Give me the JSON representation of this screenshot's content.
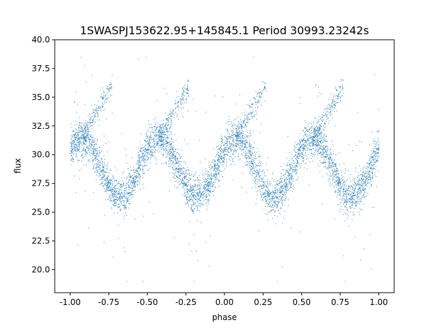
{
  "chart_data": {
    "type": "scatter",
    "title": "1SWASPJ153622.95+145845.1 Period 30993.23242s",
    "xlabel": "phase",
    "ylabel": "flux",
    "xlim": [
      -1.1,
      1.1
    ],
    "ylim": [
      18.0,
      40.0
    ],
    "xticks": [
      "-1.00",
      "-0.75",
      "-0.50",
      "-0.25",
      "0.00",
      "0.25",
      "0.50",
      "0.75",
      "1.00"
    ],
    "yticks": [
      "20.0",
      "22.5",
      "25.0",
      "27.5",
      "30.0",
      "32.5",
      "35.0",
      "37.5",
      "40.0"
    ],
    "xtick_values": [
      -1.0,
      -0.75,
      -0.5,
      -0.25,
      0.0,
      0.25,
      0.5,
      0.75,
      1.0
    ],
    "ytick_values": [
      20.0,
      22.5,
      25.0,
      27.5,
      30.0,
      32.5,
      35.0,
      37.5,
      40.0
    ],
    "grid": false,
    "marker_color": "#1f77b4",
    "description_model": {
      "phase_range": [
        -1.0,
        1.0
      ],
      "main_band_mean": 28.9,
      "main_band_amplitude": 2.5,
      "main_band_cycles_per_unit_phase": 2.0,
      "main_band_peak_phase": 0.07,
      "main_band_width": 0.8,
      "upper_branch_flux_range": [
        31.5,
        36.0
      ],
      "outlier_flux_range": [
        19.0,
        38.5
      ]
    },
    "series": [
      {
        "points_sample": [
          {
            "x": -0.93,
            "y": 31.4
          },
          {
            "x": -0.68,
            "y": 26.4
          },
          {
            "x": -0.43,
            "y": 31.4
          },
          {
            "x": -0.18,
            "y": 26.4
          },
          {
            "x": 0.07,
            "y": 31.4
          },
          {
            "x": 0.32,
            "y": 26.4
          },
          {
            "x": 0.57,
            "y": 31.4
          },
          {
            "x": 0.82,
            "y": 26.4
          },
          {
            "x": -0.78,
            "y": 35.8
          },
          {
            "x": -0.28,
            "y": 35.8
          },
          {
            "x": 0.22,
            "y": 35.8
          },
          {
            "x": 0.72,
            "y": 35.8
          }
        ]
      }
    ]
  }
}
